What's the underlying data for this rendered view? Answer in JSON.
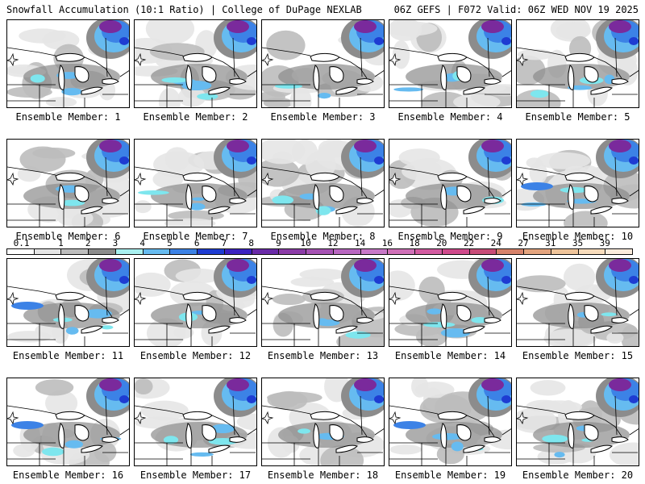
{
  "header": {
    "left": "Snowfall Accumulation (10:1 Ratio) | College of DuPage NEXLAB",
    "right": "06Z GEFS | F072 Valid: 06Z WED NOV 19 2025"
  },
  "members": [
    "Ensemble Member: 1",
    "Ensemble Member: 2",
    "Ensemble Member: 3",
    "Ensemble Member: 4",
    "Ensemble Member: 5",
    "Ensemble Member: 6",
    "Ensemble Member: 7",
    "Ensemble Member: 8",
    "Ensemble Member: 9",
    "Ensemble Member: 10",
    "Ensemble Member: 11",
    "Ensemble Member: 12",
    "Ensemble Member: 13",
    "Ensemble Member: 14",
    "Ensemble Member: 15",
    "Ensemble Member: 16",
    "Ensemble Member: 17",
    "Ensemble Member: 18",
    "Ensemble Member: 19",
    "Ensemble Member: 20"
  ],
  "colorbar": {
    "labels": [
      "0.1",
      "1",
      "2",
      "3",
      "4",
      "5",
      "6",
      "7",
      "8",
      "9",
      "10",
      "12",
      "14",
      "16",
      "18",
      "20",
      "22",
      "24",
      "27",
      "31",
      "35",
      "39"
    ],
    "colors": [
      "#ffffff",
      "#e6e6e6",
      "#bdbdbd",
      "#8c8c8c",
      "#a8f0f0",
      "#66bbf0",
      "#3c82e6",
      "#1e3cd2",
      "#3c22c0",
      "#6a2aa8",
      "#8c3ca8",
      "#a652b4",
      "#b866c0",
      "#c878c8",
      "#d070b8",
      "#d25aa0",
      "#d04a8c",
      "#c84c78",
      "#d6826a",
      "#e4a47e",
      "#efc49a",
      "#f8dcbc",
      "#fcecdc"
    ]
  },
  "styles": {
    "lake_color": "#ffffff",
    "outline_color": "#000000",
    "purple_core": "#7a2a9c",
    "blue_band": "#4a6ef0",
    "cyan_band": "#7ee6ee"
  }
}
